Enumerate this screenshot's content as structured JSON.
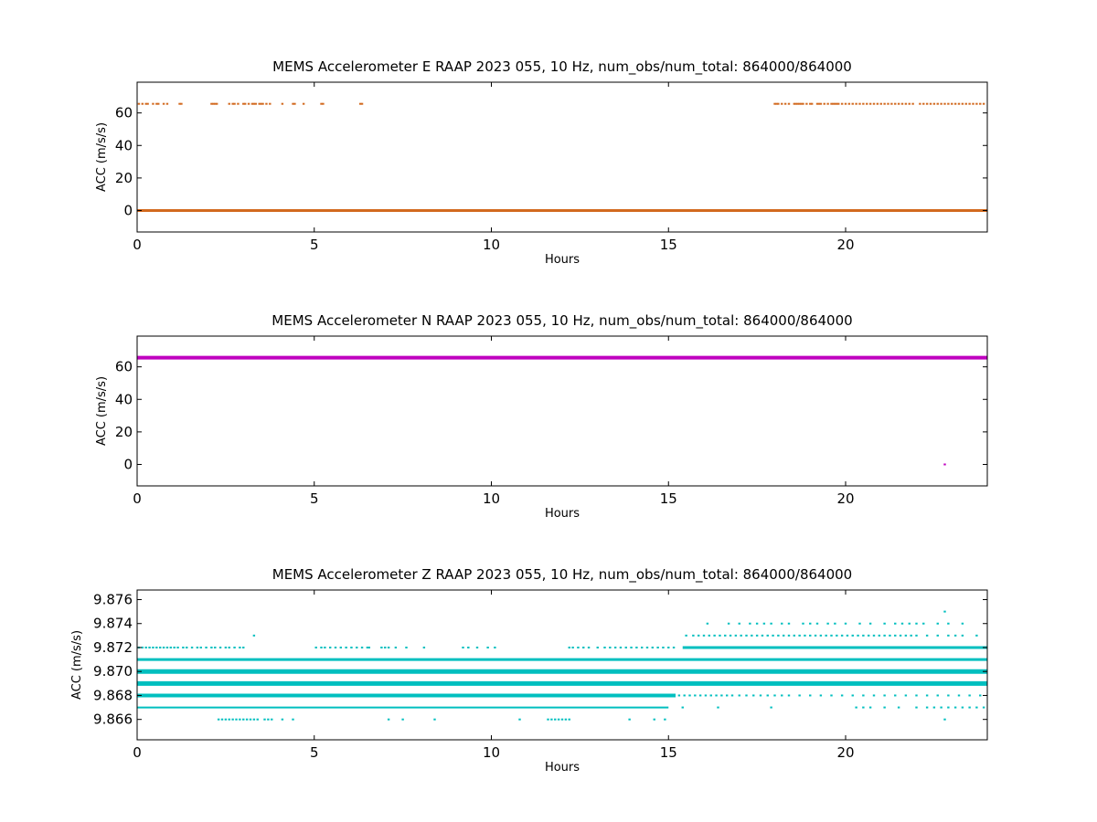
{
  "chart_data": [
    {
      "type": "scatter",
      "title": "MEMS Accelerometer E RAAP 2023 055, 10 Hz, num_obs/num_total: 864000/864000",
      "xlabel": "Hours",
      "ylabel": "ACC (m/s/s)",
      "xlim": [
        0,
        24
      ],
      "ylim": [
        -13.2,
        78.9
      ],
      "xticks": [
        0,
        5,
        10,
        15,
        20
      ],
      "yticks": [
        0,
        20,
        40,
        60
      ],
      "ytick_labels": [
        "0",
        "20",
        "40",
        "60"
      ],
      "grid": false,
      "color": "#d2691e",
      "series": [
        {
          "bands": [
            {
              "y": 0.0,
              "x_start": 0,
              "x_end": 24,
              "weight": 3
            }
          ],
          "sparse": [
            {
              "y": 65.6,
              "x": [
                0.05,
                0.15,
                0.25,
                0.3,
                0.45,
                0.55,
                0.6,
                0.75,
                0.85,
                1.2,
                1.25,
                2.1,
                2.15,
                2.2,
                2.25,
                2.6,
                2.7,
                2.75,
                2.85,
                3.0,
                3.05,
                3.15,
                3.25,
                3.3,
                3.35,
                3.45,
                3.5,
                3.55,
                3.65,
                3.75,
                4.1,
                4.4,
                4.45,
                4.7,
                5.2,
                5.25,
                6.3,
                6.35,
                18.0,
                18.05,
                18.1,
                18.2,
                18.3,
                18.4,
                18.55,
                18.6,
                18.65,
                18.7,
                18.75,
                18.8,
                18.9,
                19.0,
                19.05,
                19.2,
                19.25,
                19.3,
                19.4,
                19.5,
                19.6,
                19.65,
                19.7,
                19.75,
                19.8,
                19.9,
                20.0,
                20.1,
                20.2,
                20.3,
                20.4,
                20.5,
                20.6,
                20.7,
                20.8,
                20.9,
                21.0,
                21.1,
                21.2,
                21.3,
                21.4,
                21.5,
                21.6,
                21.7,
                21.8,
                21.9,
                22.1,
                22.2,
                22.3,
                22.4,
                22.5,
                22.6,
                22.7,
                22.8,
                22.9,
                23.0,
                23.1,
                23.2,
                23.3,
                23.4,
                23.5,
                23.6,
                23.7,
                23.8,
                23.9
              ]
            }
          ]
        }
      ]
    },
    {
      "type": "scatter",
      "title": "MEMS Accelerometer N RAAP 2023 055, 10 Hz, num_obs/num_total: 864000/864000",
      "xlabel": "Hours",
      "ylabel": "ACC (m/s/s)",
      "xlim": [
        0,
        24
      ],
      "ylim": [
        -13.2,
        78.9
      ],
      "xticks": [
        0,
        5,
        10,
        15,
        20
      ],
      "yticks": [
        0,
        20,
        40,
        60
      ],
      "ytick_labels": [
        "0",
        "20",
        "40",
        "60"
      ],
      "grid": false,
      "color": "#bf00bf",
      "series": [
        {
          "bands": [
            {
              "y": 65.6,
              "x_start": 0,
              "x_end": 24,
              "weight": 4
            }
          ],
          "sparse": [
            {
              "y": 0.0,
              "x": [
                22.8
              ]
            }
          ]
        }
      ]
    },
    {
      "type": "scatter",
      "title": "MEMS Accelerometer Z RAAP 2023 055, 10 Hz, num_obs/num_total: 864000/864000",
      "xlabel": "Hours",
      "ylabel": "ACC (m/s/s)",
      "xlim": [
        0,
        24
      ],
      "ylim": [
        9.8643,
        9.8768
      ],
      "xticks": [
        0,
        5,
        10,
        15,
        20
      ],
      "yticks": [
        9.866,
        9.868,
        9.87,
        9.872,
        9.874,
        9.876
      ],
      "ytick_labels": [
        "9.866",
        "9.868",
        "9.870",
        "9.872",
        "9.874",
        "9.876"
      ],
      "grid": false,
      "color": "#00bfbf",
      "series": [
        {
          "bands": [
            {
              "y": 9.869,
              "x_start": 0,
              "x_end": 24,
              "weight": 5
            },
            {
              "y": 9.87,
              "x_start": 0,
              "x_end": 24,
              "weight": 5
            },
            {
              "y": 9.868,
              "x_start": 0,
              "x_end": 15.2,
              "weight": 4
            },
            {
              "y": 9.871,
              "x_start": 0,
              "x_end": 24,
              "weight": 3
            },
            {
              "y": 9.872,
              "x_start": 15.4,
              "x_end": 24,
              "weight": 3
            },
            {
              "y": 9.867,
              "x_start": 0,
              "x_end": 15.0,
              "weight": 2
            }
          ],
          "sparse": [
            {
              "y": 9.872,
              "x": [
                0.05,
                0.15,
                0.25,
                0.35,
                0.45,
                0.55,
                0.65,
                0.75,
                0.85,
                0.95,
                1.05,
                1.15,
                1.3,
                1.4,
                1.55,
                1.7,
                1.8,
                1.95,
                2.1,
                2.2,
                2.35,
                2.5,
                2.6,
                2.75,
                2.9,
                3.0,
                5.05,
                5.2,
                5.3,
                5.45,
                5.6,
                5.75,
                5.9,
                6.05,
                6.2,
                6.35,
                6.5,
                6.55,
                6.9,
                7.0,
                7.1,
                7.3,
                7.6,
                8.1,
                9.2,
                9.35,
                9.6,
                9.9,
                10.1,
                12.2,
                12.3,
                12.45,
                12.6,
                12.75,
                13.0,
                13.2,
                13.35,
                13.5,
                13.65,
                13.8,
                13.95,
                14.1,
                14.25,
                14.4,
                14.55,
                14.7,
                14.85,
                15.0,
                15.15
              ]
            },
            {
              "y": 9.873,
              "x": [
                3.3,
                15.5,
                15.7,
                15.85,
                16.0,
                16.15,
                16.3,
                16.45,
                16.6,
                16.75,
                16.9,
                17.05,
                17.2,
                17.35,
                17.5,
                17.65,
                17.8,
                17.95,
                18.1,
                18.25,
                18.4,
                18.55,
                18.7,
                18.85,
                19.0,
                19.15,
                19.3,
                19.45,
                19.6,
                19.75,
                19.9,
                20.05,
                20.2,
                20.35,
                20.5,
                20.65,
                20.8,
                20.95,
                21.1,
                21.25,
                21.4,
                21.55,
                21.7,
                21.85,
                22.0,
                22.3,
                22.6,
                22.9,
                23.1,
                23.3,
                23.7
              ]
            },
            {
              "y": 9.874,
              "x": [
                16.1,
                16.7,
                17.0,
                17.3,
                17.5,
                17.7,
                17.9,
                18.2,
                18.4,
                18.8,
                19.0,
                19.2,
                19.5,
                19.7,
                20.0,
                20.4,
                20.7,
                21.1,
                21.4,
                21.6,
                21.8,
                22.0,
                22.2,
                22.6,
                22.9,
                23.3
              ]
            },
            {
              "y": 9.875,
              "x": [
                22.8
              ]
            },
            {
              "y": 9.866,
              "x": [
                2.3,
                2.4,
                2.5,
                2.6,
                2.7,
                2.8,
                2.9,
                3.0,
                3.1,
                3.2,
                3.3,
                3.4,
                3.6,
                3.7,
                3.8,
                4.1,
                4.4,
                7.1,
                7.5,
                8.4,
                10.8,
                11.6,
                11.7,
                11.8,
                11.9,
                12.0,
                12.1,
                12.2,
                13.9,
                14.6,
                14.9,
                22.8
              ]
            },
            {
              "y": 9.868,
              "x": [
                15.3,
                15.45,
                15.6,
                15.75,
                15.9,
                16.05,
                16.2,
                16.35,
                16.5,
                16.65,
                16.8,
                17.0,
                17.2,
                17.4,
                17.6,
                17.8,
                18.0,
                18.2,
                18.4,
                18.7,
                19.0,
                19.3,
                19.6,
                19.9,
                20.2,
                20.5,
                20.8,
                21.1,
                21.4,
                21.7,
                22.0,
                22.3,
                22.6,
                22.9,
                23.2,
                23.5,
                23.8
              ]
            },
            {
              "y": 9.867,
              "x": [
                15.4,
                16.4,
                17.9,
                20.3,
                20.5,
                20.7,
                21.1,
                21.5,
                22.0,
                22.3,
                22.5,
                22.7,
                22.9,
                23.1,
                23.3,
                23.5,
                23.7,
                23.9
              ]
            }
          ]
        }
      ]
    }
  ]
}
